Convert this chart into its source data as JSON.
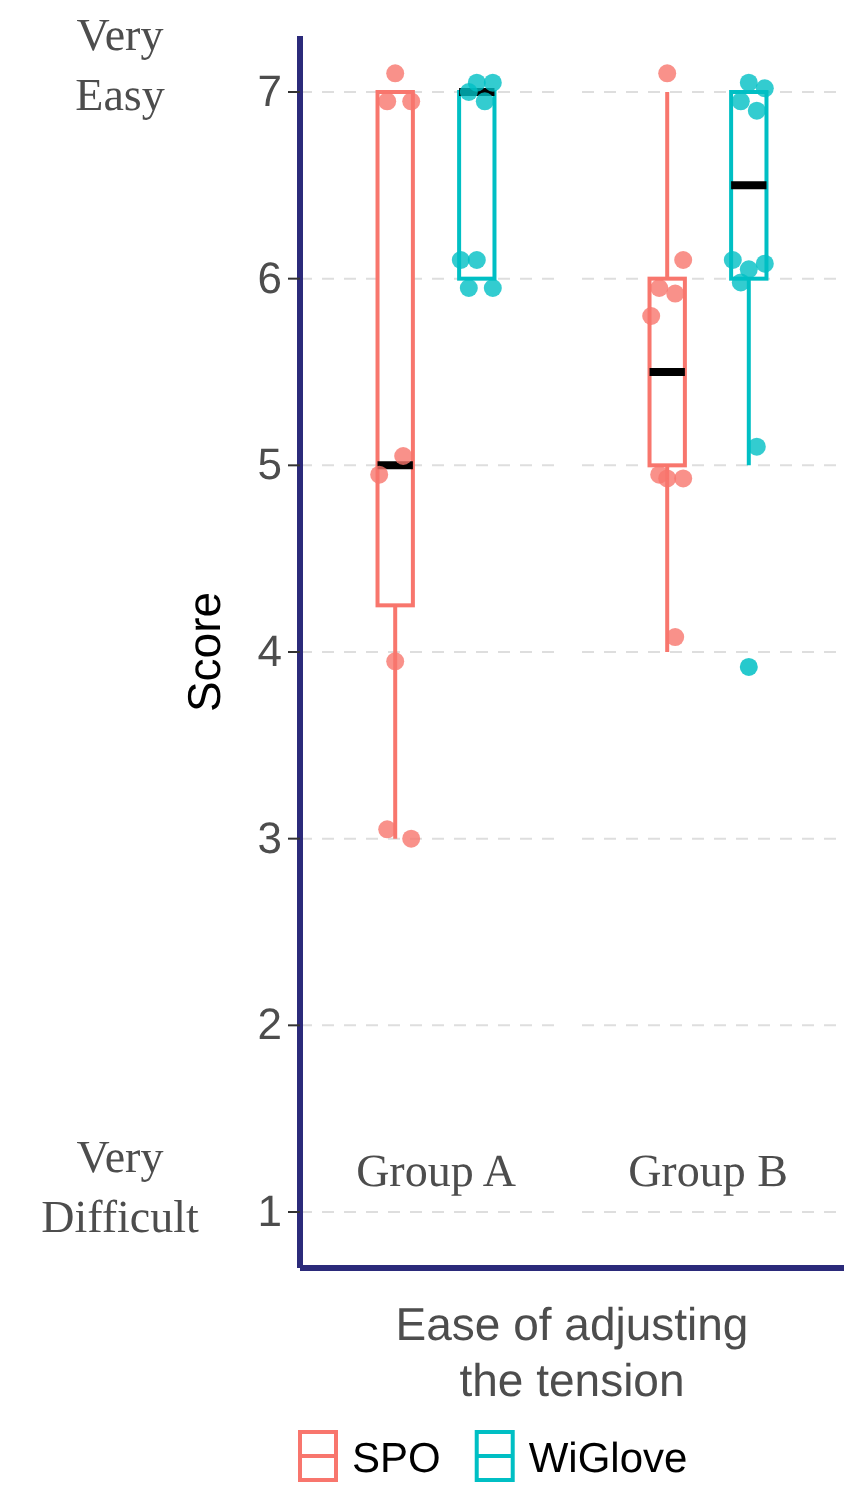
{
  "chart_data": {
    "type": "box",
    "ylabel": "Score",
    "xlabel": "Ease of adjusting the tension",
    "categories": [
      "Group A",
      "Group B"
    ],
    "ylim": [
      0.7,
      7.3
    ],
    "yticks": [
      1,
      2,
      3,
      4,
      5,
      6,
      7
    ],
    "grid": "y",
    "legend": "bottom",
    "annotations": [
      "Very Easy",
      "Very Difficult"
    ],
    "series": [
      {
        "name": "SPO",
        "color": "#f8766d",
        "boxes": [
          {
            "low": 3,
            "q1": 4.25,
            "median": 5,
            "q3": 7,
            "high": 7
          },
          {
            "low": 4,
            "q1": 5,
            "median": 5.5,
            "q3": 6,
            "high": 7
          }
        ]
      },
      {
        "name": "WiGlove",
        "color": "#00bfc4",
        "boxes": [
          {
            "low": 6,
            "q1": 6,
            "median": 7,
            "q3": 7,
            "high": 7
          },
          {
            "low": 5,
            "q1": 6,
            "median": 6.5,
            "q3": 7,
            "high": 7,
            "outliers": [
              3.92
            ]
          }
        ]
      },
      {
        "type": "scatter",
        "color": "#f8766d",
        "x": [
          "Group A",
          "Group A",
          "Group A",
          "Group A",
          "Group A",
          "Group A",
          "Group A",
          "Group A",
          "Group B",
          "Group B",
          "Group B",
          "Group B",
          "Group B",
          "Group B",
          "Group B",
          "Group B",
          "Group B"
        ],
        "values": [
          7.1,
          6.95,
          6.95,
          5.05,
          4.95,
          3.95,
          3,
          3.05,
          7.1,
          6.1,
          5.95,
          5.92,
          5.8,
          4.93,
          4.93,
          4.95,
          4.08
        ]
      },
      {
        "type": "scatter",
        "color": "#00bfc4",
        "x": [
          "Group A",
          "Group A",
          "Group A",
          "Group A",
          "Group A",
          "Group A",
          "Group A",
          "Group A",
          "Group B",
          "Group B",
          "Group B",
          "Group B",
          "Group B",
          "Group B",
          "Group B",
          "Group B",
          "Group B"
        ],
        "values": [
          7.05,
          7.05,
          7,
          6.95,
          6.1,
          6.1,
          5.95,
          5.95,
          7.05,
          7.02,
          6.95,
          6.9,
          6.1,
          6.05,
          6.08,
          5.98,
          5.1
        ]
      }
    ]
  }
}
